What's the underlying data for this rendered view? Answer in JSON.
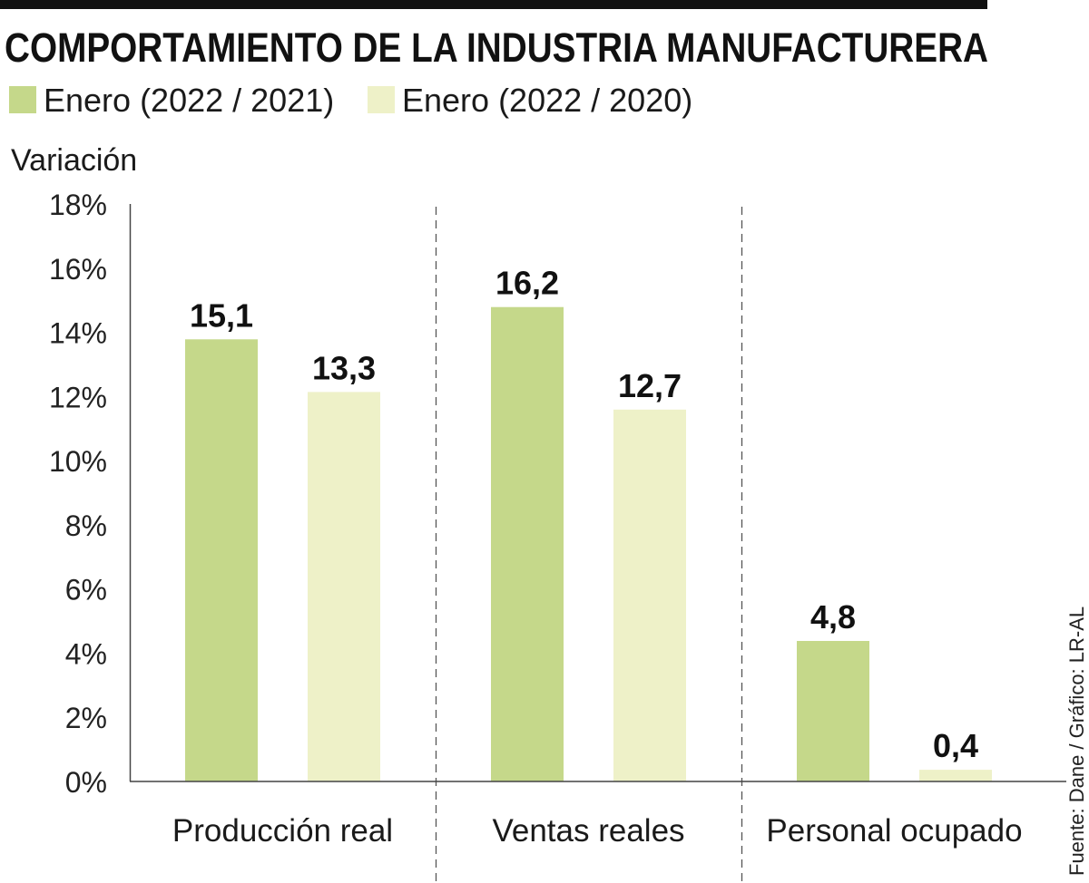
{
  "chart_data": {
    "type": "bar",
    "title": "COMPORTAMIENTO DE LA INDUSTRIA MANUFACTURERA",
    "xlabel": "",
    "ylabel": "Variación",
    "categories": [
      "Producción real",
      "Ventas reales",
      "Personal ocupado"
    ],
    "series": [
      {
        "name": "Enero (2022 / 2021)",
        "color": "#c5d88a",
        "values": [
          15.1,
          16.2,
          4.8
        ],
        "data_labels": [
          "15,1",
          "16,2",
          "4,8"
        ]
      },
      {
        "name": "Enero (2022 / 2020)",
        "color": "#eef1c8",
        "values": [
          13.3,
          12.7,
          0.4
        ],
        "data_labels": [
          "13,3",
          "12,7",
          "0,4"
        ]
      }
    ],
    "ylim": [
      0,
      18
    ],
    "yticks": [
      0,
      2,
      4,
      6,
      8,
      10,
      12,
      14,
      16,
      18
    ],
    "ytick_labels": [
      "0%",
      "2%",
      "4%",
      "6%",
      "8%",
      "10%",
      "12%",
      "14%",
      "16%",
      "18%"
    ],
    "grid": false,
    "legend_position": "top-left",
    "source": "Fuente: Dane / Gráfico: LR-AL"
  },
  "colors": {
    "header_rule": "#111111",
    "text": "#1a1a1a",
    "axis": "#444444"
  }
}
